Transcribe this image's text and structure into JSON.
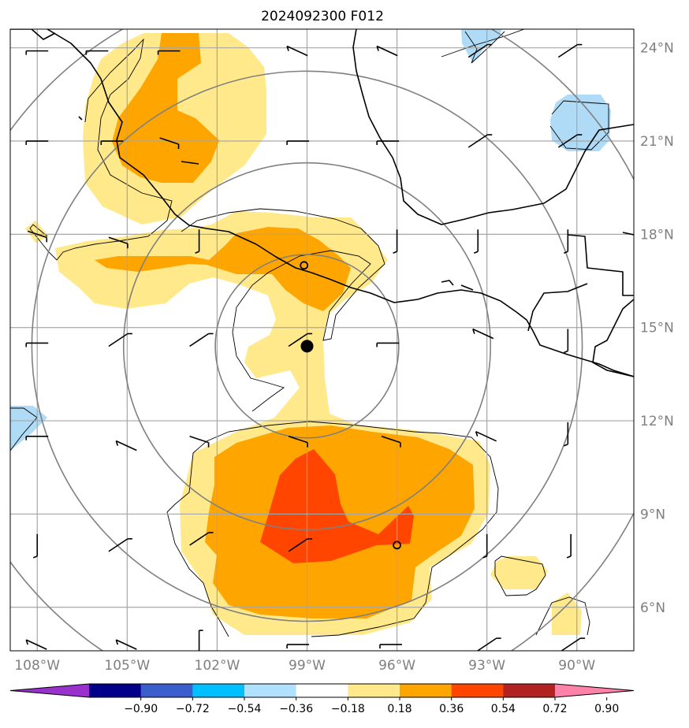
{
  "title": "2024092300 F012",
  "map": {
    "lon_range": [
      -108.9,
      -88.1
    ],
    "lat_range": [
      4.6,
      24.6
    ],
    "lon_ticks": [
      {
        "value": -108,
        "label": "108°W"
      },
      {
        "value": -105,
        "label": "105°W"
      },
      {
        "value": -102,
        "label": "102°W"
      },
      {
        "value": -99,
        "label": "99°W"
      },
      {
        "value": -96,
        "label": "96°W"
      },
      {
        "value": -93,
        "label": "93°W"
      },
      {
        "value": -90,
        "label": "90°W"
      }
    ],
    "lat_ticks": [
      {
        "value": 6,
        "label": "6°N"
      },
      {
        "value": 9,
        "label": "9°N"
      },
      {
        "value": 12,
        "label": "12°N"
      },
      {
        "value": 15,
        "label": "15°N"
      },
      {
        "value": 18,
        "label": "18°N"
      },
      {
        "value": 21,
        "label": "21°N"
      },
      {
        "value": 24,
        "label": "24°N"
      }
    ],
    "storm_center": {
      "lon": -99.0,
      "lat": 14.4
    },
    "range_ring_radii_deg": [
      3,
      6,
      9,
      12
    ],
    "markers": [
      {
        "lon": -99.1,
        "lat": 17.0
      },
      {
        "lon": -96.0,
        "lat": 8.0
      }
    ],
    "colors": {
      "light_yellow": "#ffe98a",
      "orange": "#ffa500",
      "red_orange": "#ff4500",
      "light_blue": "#add8f7",
      "grid": "#a6a6a6",
      "ring": "#808080"
    }
  },
  "colorbar": {
    "colors": [
      "#9932cc",
      "#00008b",
      "#3a5fcd",
      "#00bfff",
      "#b0e2ff",
      "#ffffff",
      "#ffe98a",
      "#ffa500",
      "#ff4500",
      "#b22222",
      "#ff82ab"
    ],
    "tick_labels": [
      "−0.90",
      "−0.72",
      "−0.54",
      "−0.36",
      "−0.18",
      "0.18",
      "0.36",
      "0.54",
      "0.72",
      "0.90"
    ]
  }
}
